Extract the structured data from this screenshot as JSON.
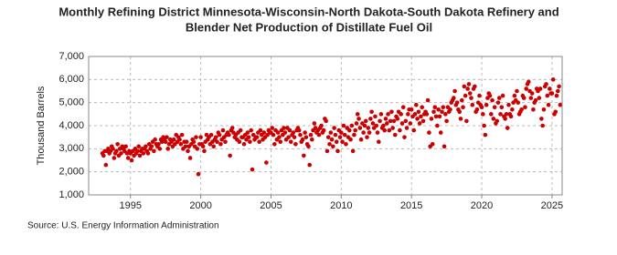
{
  "chart_data": {
    "type": "scatter",
    "title": [
      "Monthly Refining District Minnesota-Wisconsin-North Dakota-South Dakota Refinery and",
      "Blender Net Production of Distillate Fuel Oil"
    ],
    "y_label": "Thousand Barrels",
    "source": "Source: U.S. Energy Information Administration",
    "color": "#cc0000",
    "grid": true,
    "ylim": [
      1000,
      7000
    ],
    "yticks": [
      {
        "value": 1000,
        "label": "1,000"
      },
      {
        "value": 2000,
        "label": "2,000"
      },
      {
        "value": 3000,
        "label": "3,000"
      },
      {
        "value": 4000,
        "label": "4,000"
      },
      {
        "value": 5000,
        "label": "5,000"
      },
      {
        "value": 6000,
        "label": "6,000"
      },
      {
        "value": 7000,
        "label": "7,000"
      }
    ],
    "categories": [
      null,
      null,
      null,
      null,
      null,
      null,
      null,
      null,
      null,
      null,
      null,
      null,
      null,
      null,
      null,
      null,
      null,
      null,
      null,
      null,
      null,
      null,
      null,
      null,
      "1995",
      null,
      null,
      null,
      null,
      null,
      null,
      null,
      null,
      null,
      null,
      null,
      null,
      null,
      null,
      null,
      null,
      null,
      null,
      null,
      null,
      null,
      null,
      null,
      null,
      null,
      null,
      null,
      null,
      null,
      null,
      null,
      null,
      null,
      null,
      null,
      null,
      null,
      null,
      null,
      null,
      null,
      null,
      null,
      null,
      null,
      null,
      null,
      null,
      null,
      null,
      null,
      null,
      null,
      null,
      null,
      null,
      null,
      null,
      null,
      "2000",
      null,
      null,
      null,
      null,
      null,
      null,
      null,
      null,
      null,
      null,
      null,
      null,
      null,
      null,
      null,
      null,
      null,
      null,
      null,
      null,
      null,
      null,
      null,
      null,
      null,
      null,
      null,
      null,
      null,
      null,
      null,
      null,
      null,
      null,
      null,
      null,
      null,
      null,
      null,
      null,
      null,
      null,
      null,
      null,
      null,
      null,
      null,
      null,
      null,
      null,
      null,
      null,
      null,
      null,
      null,
      null,
      null,
      null,
      null,
      "2005",
      null,
      null,
      null,
      null,
      null,
      null,
      null,
      null,
      null,
      null,
      null,
      null,
      null,
      null,
      null,
      null,
      null,
      null,
      null,
      null,
      null,
      null,
      null,
      null,
      null,
      null,
      null,
      null,
      null,
      null,
      null,
      null,
      null,
      null,
      null,
      null,
      null,
      null,
      null,
      null,
      null,
      null,
      null,
      null,
      null,
      null,
      null,
      null,
      null,
      null,
      null,
      null,
      null,
      null,
      null,
      null,
      null,
      null,
      null,
      "2010",
      null,
      null,
      null,
      null,
      null,
      null,
      null,
      null,
      null,
      null,
      null,
      null,
      null,
      null,
      null,
      null,
      null,
      null,
      null,
      null,
      null,
      null,
      null,
      null,
      null,
      null,
      null,
      null,
      null,
      null,
      null,
      null,
      null,
      null,
      null,
      null,
      null,
      null,
      null,
      null,
      null,
      null,
      null,
      null,
      null,
      null,
      null,
      null,
      null,
      null,
      null,
      null,
      null,
      null,
      null,
      null,
      null,
      null,
      null,
      "2015",
      null,
      null,
      null,
      null,
      null,
      null,
      null,
      null,
      null,
      null,
      null,
      null,
      null,
      null,
      null,
      null,
      null,
      null,
      null,
      null,
      null,
      null,
      null,
      null,
      null,
      null,
      null,
      null,
      null,
      null,
      null,
      null,
      null,
      null,
      null,
      null,
      null,
      null,
      null,
      null,
      null,
      null,
      null,
      null,
      null,
      null,
      null,
      null,
      null,
      null,
      null,
      null,
      null,
      null,
      null,
      null,
      null,
      null,
      null,
      "2020",
      null,
      null,
      null,
      null,
      null,
      null,
      null,
      null,
      null,
      null,
      null,
      null,
      null,
      null,
      null,
      null,
      null,
      null,
      null,
      null,
      null,
      null,
      null,
      null,
      null,
      null,
      null,
      null,
      null,
      null,
      null,
      null,
      null,
      null,
      null,
      null,
      null,
      null,
      null,
      null,
      null,
      null,
      null,
      null,
      null,
      null,
      null,
      null,
      null,
      null,
      null,
      null,
      null,
      null,
      null,
      null,
      null,
      null,
      null,
      "2025",
      null,
      null,
      null,
      null,
      null,
      null,
      null
    ],
    "values": [
      2800,
      2700,
      2900,
      2300,
      2900,
      3000,
      2800,
      2900,
      3100,
      3000,
      2600,
      2800,
      2900,
      3200,
      2700,
      3000,
      2800,
      3100,
      3000,
      2900,
      3100,
      2800,
      2600,
      2900,
      2800,
      2500,
      2900,
      2700,
      3000,
      2800,
      2900,
      3100,
      2700,
      2900,
      3000,
      2800,
      3000,
      3100,
      2900,
      2800,
      3200,
      3000,
      3100,
      3300,
      2900,
      3400,
      3200,
      3100,
      3200,
      3000,
      3400,
      3300,
      3500,
      3400,
      3300,
      3500,
      3000,
      3200,
      3400,
      3300,
      3100,
      3400,
      3200,
      3600,
      3300,
      3500,
      3400,
      3200,
      3600,
      3000,
      3300,
      3100,
      3300,
      2900,
      3100,
      2600,
      3200,
      3400,
      3300,
      3100,
      3500,
      3000,
      1900,
      3200,
      3500,
      3200,
      3100,
      2900,
      3300,
      3600,
      3400,
      3500,
      3200,
      3600,
      3300,
      3100,
      3400,
      3500,
      3300,
      3700,
      3600,
      3200,
      3400,
      3800,
      3500,
      3300,
      3600,
      3700,
      3600,
      2700,
      3800,
      3900,
      3700,
      3500,
      3600,
      3400,
      3700,
      3300,
      3800,
      3500,
      3500,
      3200,
      3600,
      3400,
      3700,
      3500,
      3300,
      3800,
      2100,
      3600,
      3400,
      3500,
      3500,
      3700,
      3300,
      3800,
      3600,
      3400,
      3700,
      3500,
      2400,
      3600,
      3800,
      3700,
      3700,
      3900,
      3600,
      3200,
      3800,
      3400,
      3700,
      3500,
      3300,
      3800,
      3600,
      3900,
      3700,
      3400,
      3900,
      3500,
      3800,
      3300,
      3600,
      3700,
      3500,
      3200,
      3800,
      3900,
      3800,
      3600,
      3300,
      3400,
      2700,
      3700,
      3500,
      3200,
      3100,
      2300,
      3600,
      3400,
      3800,
      4100,
      3900,
      3700,
      3800,
      3600,
      3900,
      4000,
      3700,
      3800,
      4300,
      4200,
      2900,
      3500,
      3200,
      3700,
      3400,
      3100,
      3900,
      3600,
      3300,
      2900,
      3800,
      3500,
      3700,
      3300,
      4000,
      3600,
      3200,
      3900,
      3500,
      3800,
      3400,
      4000,
      2900,
      3600,
      3800,
      4100,
      4500,
      4300,
      3900,
      3400,
      4100,
      3700,
      4000,
      4200,
      3500,
      3900,
      3700,
      4300,
      4600,
      4100,
      3900,
      4400,
      4000,
      3700,
      3300,
      4200,
      4500,
      3900,
      4000,
      3800,
      4300,
      4100,
      4500,
      3800,
      4200,
      4600,
      3900,
      4200,
      3600,
      4400,
      4300,
      4600,
      3800,
      4500,
      4100,
      4800,
      3500,
      4200,
      3900,
      4500,
      4700,
      4100,
      4700,
      4400,
      3800,
      4500,
      4900,
      4300,
      4600,
      4100,
      4400,
      4800,
      4200,
      4500,
      4600,
      4500,
      5100,
      3700,
      3100,
      4300,
      3200,
      4600,
      4800,
      4400,
      4000,
      4700,
      4400,
      3700,
      4600,
      4800,
      3100,
      4500,
      4200,
      4800,
      4600,
      4700,
      5000,
      5100,
      5200,
      5500,
      4900,
      5000,
      4700,
      4600,
      4300,
      5100,
      4800,
      5700,
      5300,
      4200,
      5600,
      5800,
      5400,
      5200,
      4900,
      5600,
      5700,
      4600,
      4700,
      5000,
      5300,
      4900,
      4800,
      4500,
      4000,
      3600,
      4900,
      5200,
      5400,
      5300,
      4500,
      5100,
      4300,
      4800,
      4100,
      4200,
      5000,
      5200,
      4500,
      4800,
      5300,
      4400,
      4300,
      4500,
      3900,
      4900,
      4500,
      4400,
      4700,
      5000,
      5300,
      5100,
      5500,
      5000,
      4500,
      4600,
      4700,
      5300,
      5200,
      4800,
      5600,
      5800,
      5900,
      5500,
      5200,
      5400,
      4700,
      5000,
      5100,
      5600,
      5500,
      5200,
      5600,
      4300,
      4000,
      4700,
      5700,
      5800,
      5300,
      4900,
      5600,
      5400,
      5400,
      6000,
      4500,
      4600,
      5300,
      5500,
      5700,
      4900
    ]
  }
}
